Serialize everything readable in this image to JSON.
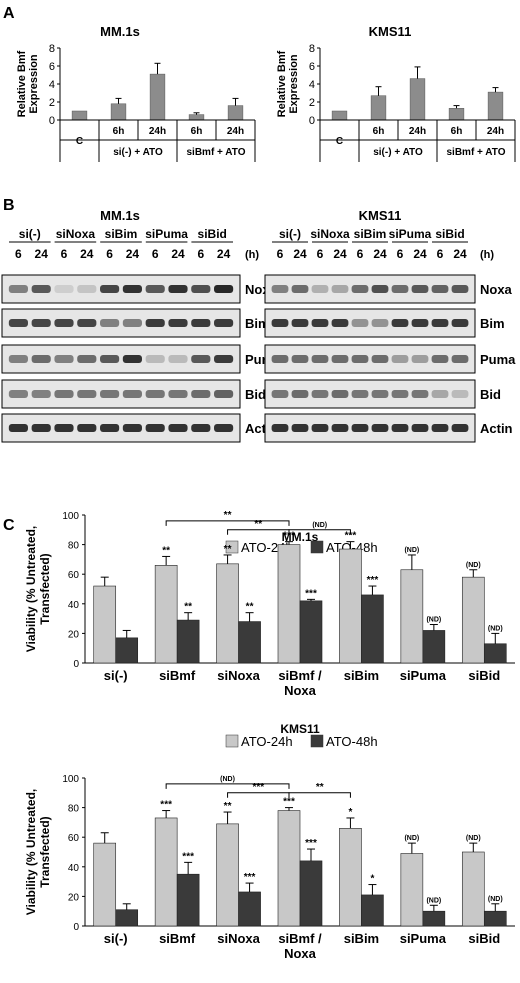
{
  "panel_labels": {
    "a": "A",
    "b": "B",
    "c": "C"
  },
  "chart_data": [
    {
      "id": "A-MM1s",
      "type": "bar",
      "title": "MM.1s",
      "ylabel": "Relative Bmf Expression",
      "ylim": [
        0,
        8
      ],
      "yticks": [
        0,
        2,
        4,
        6,
        8
      ],
      "categories": [
        "C",
        "6h",
        "24h",
        "6h",
        "24h"
      ],
      "values": [
        1.0,
        1.8,
        5.1,
        0.6,
        1.6
      ],
      "errors": [
        0.0,
        0.6,
        1.2,
        0.2,
        0.8
      ],
      "groups": [
        {
          "label": "C",
          "span": [
            0,
            0
          ]
        },
        {
          "label": "si(-) + ATO",
          "span": [
            1,
            2
          ]
        },
        {
          "label": "siBmf + ATO",
          "span": [
            3,
            4
          ]
        }
      ],
      "grid": false
    },
    {
      "id": "A-KMS11",
      "type": "bar",
      "title": "KMS11",
      "ylabel": "Relative Bmf Expression",
      "ylim": [
        0,
        8
      ],
      "yticks": [
        0,
        2,
        4,
        6,
        8
      ],
      "categories": [
        "C",
        "6h",
        "24h",
        "6h",
        "24h"
      ],
      "values": [
        1.0,
        2.7,
        4.6,
        1.3,
        3.1
      ],
      "errors": [
        0.0,
        1.0,
        1.3,
        0.3,
        0.5
      ],
      "groups": [
        {
          "label": "C",
          "span": [
            0,
            0
          ]
        },
        {
          "label": "si(-) + ATO",
          "span": [
            1,
            2
          ]
        },
        {
          "label": "siBmf + ATO",
          "span": [
            3,
            4
          ]
        }
      ],
      "grid": false
    },
    {
      "id": "C-MM1s",
      "type": "bar",
      "title": "MM.1s",
      "ylabel": "Viability (% Untreated, Transfected)",
      "ylim": [
        0,
        100
      ],
      "yticks": [
        0,
        20,
        40,
        60,
        80,
        100
      ],
      "categories": [
        "si(-)",
        "siBmf",
        "siNoxa",
        "siBmf / Noxa",
        "siBim",
        "siPuma",
        "siBid"
      ],
      "series": [
        {
          "name": "ATO-24h",
          "color": "#c8c8c8",
          "values": [
            52,
            66,
            67,
            80,
            77,
            63,
            58
          ],
          "errors": [
            6,
            6,
            6,
            2,
            5,
            10,
            5
          ],
          "sig": [
            "",
            "**",
            "**",
            "***",
            "***",
            "(ND)",
            "(ND)"
          ]
        },
        {
          "name": "ATO-48h",
          "color": "#3a3a3a",
          "values": [
            17,
            29,
            28,
            42,
            46,
            22,
            13
          ],
          "errors": [
            5,
            5,
            6,
            1,
            6,
            4,
            7
          ],
          "sig": [
            "",
            "**",
            "**",
            "***",
            "***",
            "(ND)",
            "(ND)"
          ]
        }
      ],
      "brackets": [
        {
          "from": 1,
          "to": 3,
          "label": "**",
          "y": 96
        },
        {
          "from": 2,
          "to": 3,
          "label": "**",
          "y": 90
        },
        {
          "from": 3,
          "to": 4,
          "label": "(ND)",
          "y": 90
        }
      ],
      "legend": "top",
      "grid": false
    },
    {
      "id": "C-KMS11",
      "type": "bar",
      "title": "KMS11",
      "ylabel": "Viability (% Untreated, Transfected)",
      "ylim": [
        0,
        100
      ],
      "yticks": [
        0,
        20,
        40,
        60,
        80,
        100
      ],
      "categories": [
        "si(-)",
        "siBmf",
        "siNoxa",
        "siBmf / Noxa",
        "siBim",
        "siPuma",
        "siBid"
      ],
      "series": [
        {
          "name": "ATO-24h",
          "color": "#c8c8c8",
          "values": [
            56,
            73,
            69,
            78,
            66,
            49,
            50
          ],
          "errors": [
            7,
            5,
            8,
            2,
            7,
            7,
            6
          ],
          "sig": [
            "",
            "***",
            "**",
            "***",
            "*",
            "(ND)",
            "(ND)"
          ]
        },
        {
          "name": "ATO-48h",
          "color": "#3a3a3a",
          "values": [
            11,
            35,
            23,
            44,
            21,
            10,
            10
          ],
          "errors": [
            4,
            8,
            6,
            8,
            7,
            4,
            5
          ],
          "sig": [
            "",
            "***",
            "***",
            "***",
            "*",
            "(ND)",
            "(ND)"
          ]
        }
      ],
      "brackets": [
        {
          "from": 1,
          "to": 3,
          "label": "(ND)",
          "y": 96
        },
        {
          "from": 2,
          "to": 3,
          "label": "***",
          "y": 90
        },
        {
          "from": 3,
          "to": 4,
          "label": "**",
          "y": 90
        }
      ],
      "legend": "top",
      "grid": false
    }
  ],
  "blots": [
    {
      "id": "B-MM1s",
      "title": "MM.1s",
      "groups": [
        "si(-)",
        "siNoxa",
        "siBim",
        "siPuma",
        "siBid"
      ],
      "lanes": [
        "6",
        "24",
        "6",
        "24",
        "6",
        "24",
        "6",
        "24",
        "6",
        "24"
      ],
      "unit": "(h)",
      "proteins": [
        {
          "name": "Noxa",
          "intensity": [
            0.5,
            0.7,
            0.1,
            0.15,
            0.8,
            0.9,
            0.7,
            0.9,
            0.75,
            0.95
          ]
        },
        {
          "name": "Bim",
          "intensity": [
            0.8,
            0.8,
            0.8,
            0.8,
            0.5,
            0.5,
            0.85,
            0.85,
            0.85,
            0.85
          ]
        },
        {
          "name": "Puma",
          "intensity": [
            0.5,
            0.6,
            0.5,
            0.6,
            0.7,
            0.9,
            0.2,
            0.2,
            0.7,
            0.85
          ]
        },
        {
          "name": "Bid",
          "intensity": [
            0.5,
            0.5,
            0.55,
            0.55,
            0.55,
            0.55,
            0.55,
            0.55,
            0.6,
            0.65
          ]
        },
        {
          "name": "Actin",
          "intensity": [
            0.9,
            0.9,
            0.9,
            0.9,
            0.9,
            0.9,
            0.9,
            0.9,
            0.9,
            0.9
          ]
        }
      ]
    },
    {
      "id": "B-KMS11",
      "title": "KMS11",
      "groups": [
        "si(-)",
        "siNoxa",
        "siBim",
        "siPuma",
        "siBid"
      ],
      "lanes": [
        "6",
        "24",
        "6",
        "24",
        "6",
        "24",
        "6",
        "24",
        "6",
        "24"
      ],
      "unit": "(h)",
      "proteins": [
        {
          "name": "Noxa",
          "intensity": [
            0.5,
            0.6,
            0.25,
            0.3,
            0.6,
            0.75,
            0.6,
            0.7,
            0.65,
            0.7
          ]
        },
        {
          "name": "Bim",
          "intensity": [
            0.85,
            0.85,
            0.85,
            0.85,
            0.4,
            0.4,
            0.85,
            0.85,
            0.85,
            0.85
          ]
        },
        {
          "name": "Puma",
          "intensity": [
            0.6,
            0.6,
            0.6,
            0.6,
            0.6,
            0.6,
            0.35,
            0.35,
            0.6,
            0.6
          ]
        },
        {
          "name": "Bid",
          "intensity": [
            0.55,
            0.6,
            0.55,
            0.6,
            0.55,
            0.55,
            0.55,
            0.55,
            0.3,
            0.2
          ]
        },
        {
          "name": "Actin",
          "intensity": [
            0.9,
            0.9,
            0.9,
            0.9,
            0.9,
            0.9,
            0.9,
            0.9,
            0.9,
            0.9
          ]
        }
      ]
    }
  ]
}
